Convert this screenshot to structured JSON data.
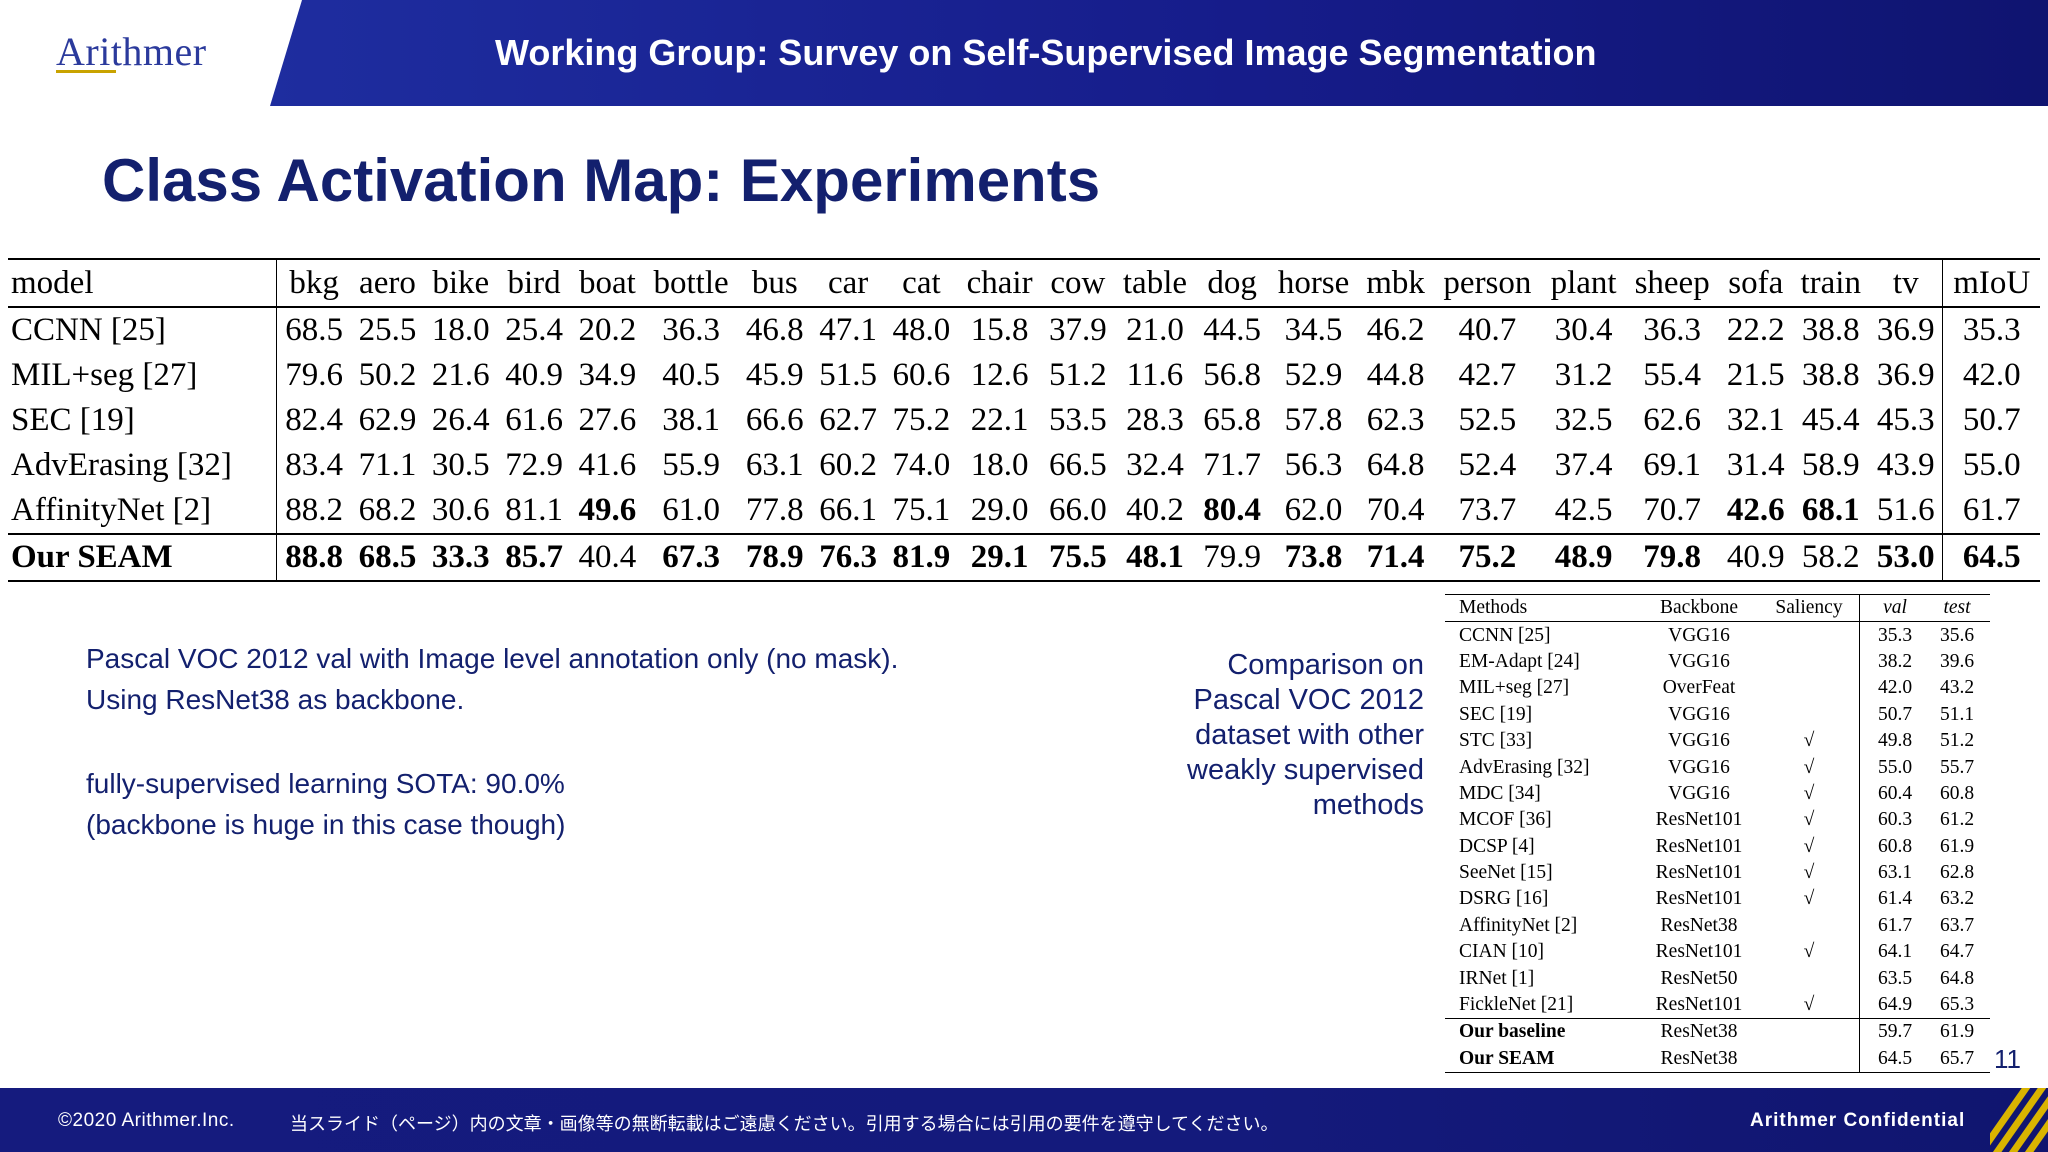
{
  "header": {
    "logo": "Arithmer",
    "title": "Working Group: Survey on Self-Supervised Image Segmentation"
  },
  "page_title": "Class Activation Map: Experiments",
  "main_table": {
    "columns": [
      "model",
      "bkg",
      "aero",
      "bike",
      "bird",
      "boat",
      "bottle",
      "bus",
      "car",
      "cat",
      "chair",
      "cow",
      "table",
      "dog",
      "horse",
      "mbk",
      "person",
      "plant",
      "sheep",
      "sofa",
      "train",
      "tv",
      "mIoU"
    ],
    "rows": [
      [
        "CCNN [25]",
        "68.5",
        "25.5",
        "18.0",
        "25.4",
        "20.2",
        "36.3",
        "46.8",
        "47.1",
        "48.0",
        "15.8",
        "37.9",
        "21.0",
        "44.5",
        "34.5",
        "46.2",
        "40.7",
        "30.4",
        "36.3",
        "22.2",
        "38.8",
        "36.9",
        "35.3"
      ],
      [
        "MIL+seg [27]",
        "79.6",
        "50.2",
        "21.6",
        "40.9",
        "34.9",
        "40.5",
        "45.9",
        "51.5",
        "60.6",
        "12.6",
        "51.2",
        "11.6",
        "56.8",
        "52.9",
        "44.8",
        "42.7",
        "31.2",
        "55.4",
        "21.5",
        "38.8",
        "36.9",
        "42.0"
      ],
      [
        "SEC [19]",
        "82.4",
        "62.9",
        "26.4",
        "61.6",
        "27.6",
        "38.1",
        "66.6",
        "62.7",
        "75.2",
        "22.1",
        "53.5",
        "28.3",
        "65.8",
        "57.8",
        "62.3",
        "52.5",
        "32.5",
        "62.6",
        "32.1",
        "45.4",
        "45.3",
        "50.7"
      ],
      [
        "AdvErasing [32]",
        "83.4",
        "71.1",
        "30.5",
        "72.9",
        "41.6",
        "55.9",
        "63.1",
        "60.2",
        "74.0",
        "18.0",
        "66.5",
        "32.4",
        "71.7",
        "56.3",
        "64.8",
        "52.4",
        "37.4",
        "69.1",
        "31.4",
        "58.9",
        "43.9",
        "55.0"
      ],
      [
        "AffinityNet [2]",
        "88.2",
        "68.2",
        "30.6",
        "81.1",
        "49.6",
        "61.0",
        "77.8",
        "66.1",
        "75.1",
        "29.0",
        "66.0",
        "40.2",
        "80.4",
        "62.0",
        "70.4",
        "73.7",
        "42.5",
        "70.7",
        "42.6",
        "68.1",
        "51.6",
        "61.7"
      ],
      [
        "Our SEAM",
        "88.8",
        "68.5",
        "33.3",
        "85.7",
        "40.4",
        "67.3",
        "78.9",
        "76.3",
        "81.9",
        "29.1",
        "75.5",
        "48.1",
        "79.9",
        "73.8",
        "71.4",
        "75.2",
        "48.9",
        "79.8",
        "40.9",
        "58.2",
        "53.0",
        "64.5"
      ]
    ]
  },
  "notes": {
    "note1": "Pascal VOC 2012 val with Image level annotation only (no mask). Using ResNet38 as backbone.",
    "note2_line1": "fully-supervised learning SOTA: 90.0%",
    "note2_line2": "(backbone is huge in this case though)"
  },
  "comparison_caption": "Comparison on Pascal VOC 2012 dataset with other weakly supervised methods",
  "comparison_table": {
    "headers": [
      "Methods",
      "Backbone",
      "Saliency",
      "val",
      "test"
    ],
    "rows": [
      [
        "CCNN [25]",
        "VGG16",
        "",
        "35.3",
        "35.6"
      ],
      [
        "EM-Adapt [24]",
        "VGG16",
        "",
        "38.2",
        "39.6"
      ],
      [
        "MIL+seg [27]",
        "OverFeat",
        "",
        "42.0",
        "43.2"
      ],
      [
        "SEC [19]",
        "VGG16",
        "",
        "50.7",
        "51.1"
      ],
      [
        "STC [33]",
        "VGG16",
        "√",
        "49.8",
        "51.2"
      ],
      [
        "AdvErasing [32]",
        "VGG16",
        "√",
        "55.0",
        "55.7"
      ],
      [
        "MDC [34]",
        "VGG16",
        "√",
        "60.4",
        "60.8"
      ],
      [
        "MCOF [36]",
        "ResNet101",
        "√",
        "60.3",
        "61.2"
      ],
      [
        "DCSP [4]",
        "ResNet101",
        "√",
        "60.8",
        "61.9"
      ],
      [
        "SeeNet [15]",
        "ResNet101",
        "√",
        "63.1",
        "62.8"
      ],
      [
        "DSRG [16]",
        "ResNet101",
        "√",
        "61.4",
        "63.2"
      ],
      [
        "AffinityNet [2]",
        "ResNet38",
        "",
        "61.7",
        "63.7"
      ],
      [
        "CIAN [10]",
        "ResNet101",
        "√",
        "64.1",
        "64.7"
      ],
      [
        "IRNet [1]",
        "ResNet50",
        "",
        "63.5",
        "64.8"
      ],
      [
        "FickleNet [21]",
        "ResNet101",
        "√",
        "64.9",
        "65.3"
      ],
      [
        "Our baseline",
        "ResNet38",
        "",
        "59.7",
        "61.9"
      ],
      [
        "Our SEAM",
        "ResNet38",
        "",
        "64.5",
        "65.7"
      ]
    ]
  },
  "page_number": "11",
  "footer": {
    "copyright": "©2020 Arithmer.Inc.",
    "notice": "当スライド（ページ）内の文章・画像等の無断転載はご遠慮ください。引用する場合には引用の要件を遵守してください。",
    "confidential": "Arithmer Confidential"
  },
  "colors": {
    "header_blue": "#1e2d9f",
    "title_navy": "#13206e",
    "accent_gold": "#d9b400"
  }
}
